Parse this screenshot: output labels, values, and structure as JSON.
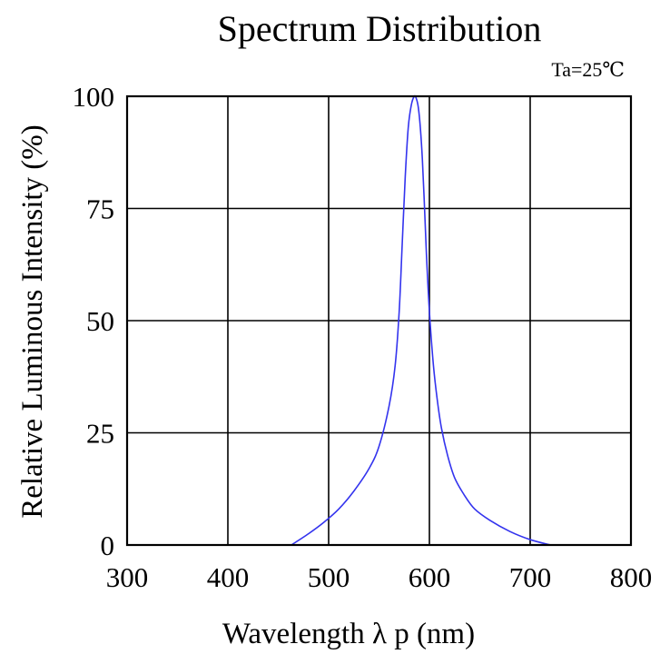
{
  "chart_data": {
    "type": "line",
    "title": "Spectrum Distribution",
    "note": "Ta=25℃",
    "xlabel": "Wavelength λ p (nm)",
    "ylabel": "Relative Luminous Intensity (%)",
    "xlim": [
      300,
      800
    ],
    "ylim": [
      0,
      100
    ],
    "xticks": [
      300,
      400,
      500,
      600,
      700,
      800
    ],
    "yticks": [
      0,
      25,
      50,
      75,
      100
    ],
    "grid": true,
    "series": [
      {
        "color": "#3333ee",
        "x": [
          463,
          480,
          495,
          510,
          525,
          540,
          550,
          560,
          566,
          570,
          573,
          576,
          579,
          582,
          585,
          587,
          589,
          591,
          593,
          595,
          597,
          600,
          604,
          608,
          612,
          618,
          625,
          635,
          645,
          660,
          680,
          700,
          720
        ],
        "y": [
          0,
          2.5,
          5,
          8,
          12,
          17,
          22,
          31,
          40,
          52,
          67,
          82,
          93,
          98,
          100,
          99.5,
          97.5,
          93,
          86,
          76,
          65,
          52,
          40,
          32,
          26,
          20,
          15,
          11,
          8,
          5.5,
          3,
          1.2,
          0
        ]
      }
    ]
  }
}
